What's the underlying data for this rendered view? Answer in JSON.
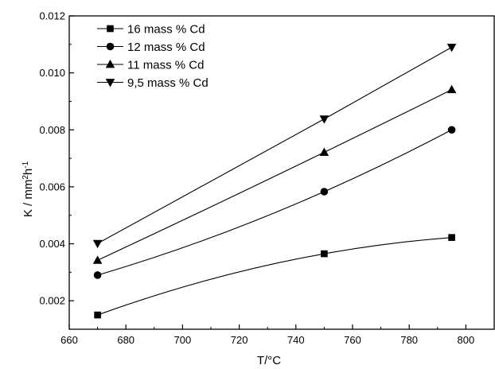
{
  "chart_data": {
    "type": "line",
    "x_unit_label": "T/°C",
    "y_unit_label": "K / mm",
    "y_unit_sup": "2",
    "y_unit_h": "h",
    "y_unit_sup2": "-1",
    "xlim": [
      660,
      810
    ],
    "ylim": [
      0.001,
      0.012
    ],
    "x_ticks": [
      "660",
      "680",
      "700",
      "720",
      "740",
      "760",
      "780",
      "800"
    ],
    "y_ticks": [
      "0.002",
      "0.004",
      "0.006",
      "0.008",
      "0.010",
      "0.012"
    ],
    "legend_position": "top-left",
    "grid": false,
    "series": [
      {
        "name": "16 mass % Cd",
        "marker": "square",
        "x": [
          670,
          750,
          795
        ],
        "y": [
          0.0015,
          0.00365,
          0.00422
        ],
        "curve": "smooth"
      },
      {
        "name": "12 mass % Cd",
        "marker": "circle",
        "x": [
          670,
          750,
          795
        ],
        "y": [
          0.0029,
          0.00583,
          0.008
        ],
        "curve": "smooth"
      },
      {
        "name": "11 mass % Cd",
        "marker": "triangle-up",
        "x": [
          670,
          750,
          795
        ],
        "y": [
          0.00342,
          0.00721,
          0.00941
        ],
        "curve": "smooth"
      },
      {
        "name": "9,5 mass % Cd",
        "marker": "triangle-down",
        "x": [
          670,
          750,
          795
        ],
        "y": [
          0.00401,
          0.00838,
          0.0109
        ],
        "curve": "straight"
      }
    ]
  }
}
